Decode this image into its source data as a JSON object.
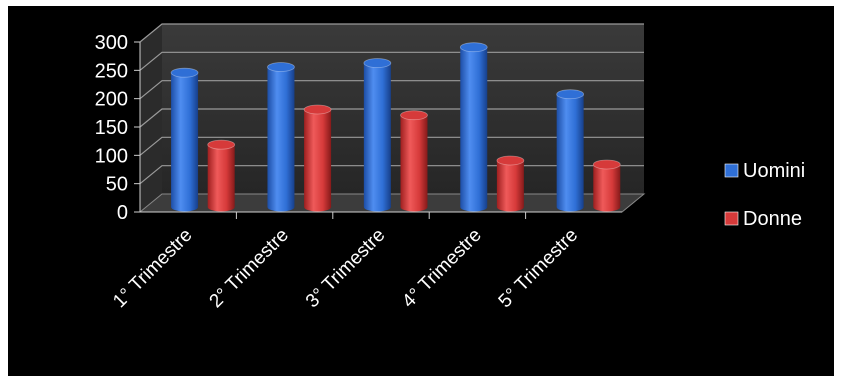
{
  "chart_data": {
    "type": "bar",
    "style": "3d-cylinder",
    "categories": [
      "1° Trimestre",
      "2° Trimestre",
      "3° Trimestre",
      "4° Trimestre",
      "5° Trimestre"
    ],
    "series": [
      {
        "name": "Uomini",
        "values": [
          230,
          240,
          247,
          275,
          192
        ],
        "color": "#2f6fd6"
      },
      {
        "name": "Donne",
        "values": [
          103,
          165,
          155,
          75,
          68
        ],
        "color": "#d63a3a"
      }
    ],
    "y_ticks": [
      "0",
      "50",
      "100",
      "150",
      "200",
      "250",
      "300"
    ],
    "ylim": [
      0,
      300
    ],
    "title": "",
    "xlabel": "",
    "ylabel": "",
    "grid": true,
    "legend_position": "right",
    "background": "#000000"
  }
}
